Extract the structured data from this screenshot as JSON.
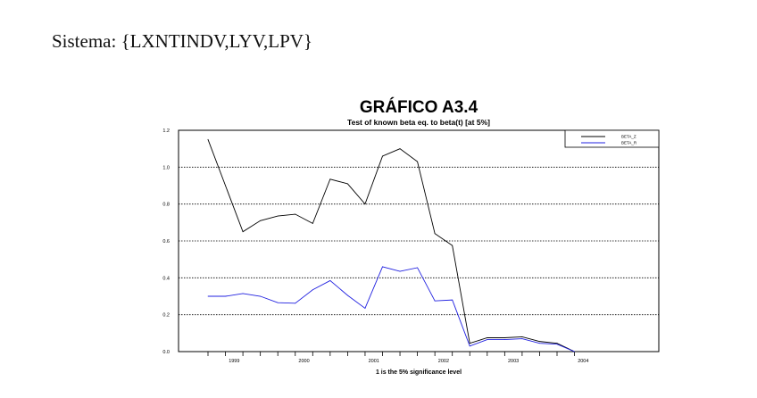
{
  "heading": "Sistema: {LXNTINDV,LYV,LPV}",
  "chart_data": {
    "type": "line",
    "title": "GRÁFICO A3.4",
    "subtitle": "Test of known beta eq. to beta(t) [at 5%]",
    "xlabel": "1 is the 5% significance level",
    "ylabel": "",
    "ylim": [
      0,
      1.2
    ],
    "yticks": [
      "0.0",
      "0.2",
      "0.4",
      "0.6",
      "0.8",
      "1.0",
      "1.2"
    ],
    "xtick_labels": [
      "1999",
      "2000",
      "2001",
      "2002",
      "2003",
      "2004"
    ],
    "xtick_label_positions": [
      1.5,
      5.5,
      9.5,
      13.5,
      17.5,
      21.5
    ],
    "grid": "horizontal dotted",
    "legend": "top-right",
    "x": [
      0,
      1,
      2,
      3,
      4,
      5,
      6,
      7,
      8,
      9,
      10,
      11,
      12,
      13,
      14,
      15,
      16,
      17,
      18,
      19,
      20,
      21
    ],
    "series": [
      {
        "name": "BETA_Z",
        "color": "#000000",
        "values": [
          1.15,
          0.9,
          0.65,
          0.71,
          0.735,
          0.745,
          0.695,
          0.935,
          0.91,
          0.8,
          1.06,
          1.1,
          1.03,
          0.64,
          0.575,
          0.045,
          0.075,
          0.075,
          0.08,
          0.055,
          0.045,
          0.0
        ]
      },
      {
        "name": "BETA_R",
        "color": "#2020e0",
        "values": [
          0.3,
          0.3,
          0.315,
          0.3,
          0.265,
          0.262,
          0.335,
          0.385,
          0.305,
          0.235,
          0.46,
          0.435,
          0.455,
          0.275,
          0.28,
          0.03,
          0.065,
          0.065,
          0.07,
          0.045,
          0.04,
          0.0
        ]
      }
    ]
  }
}
